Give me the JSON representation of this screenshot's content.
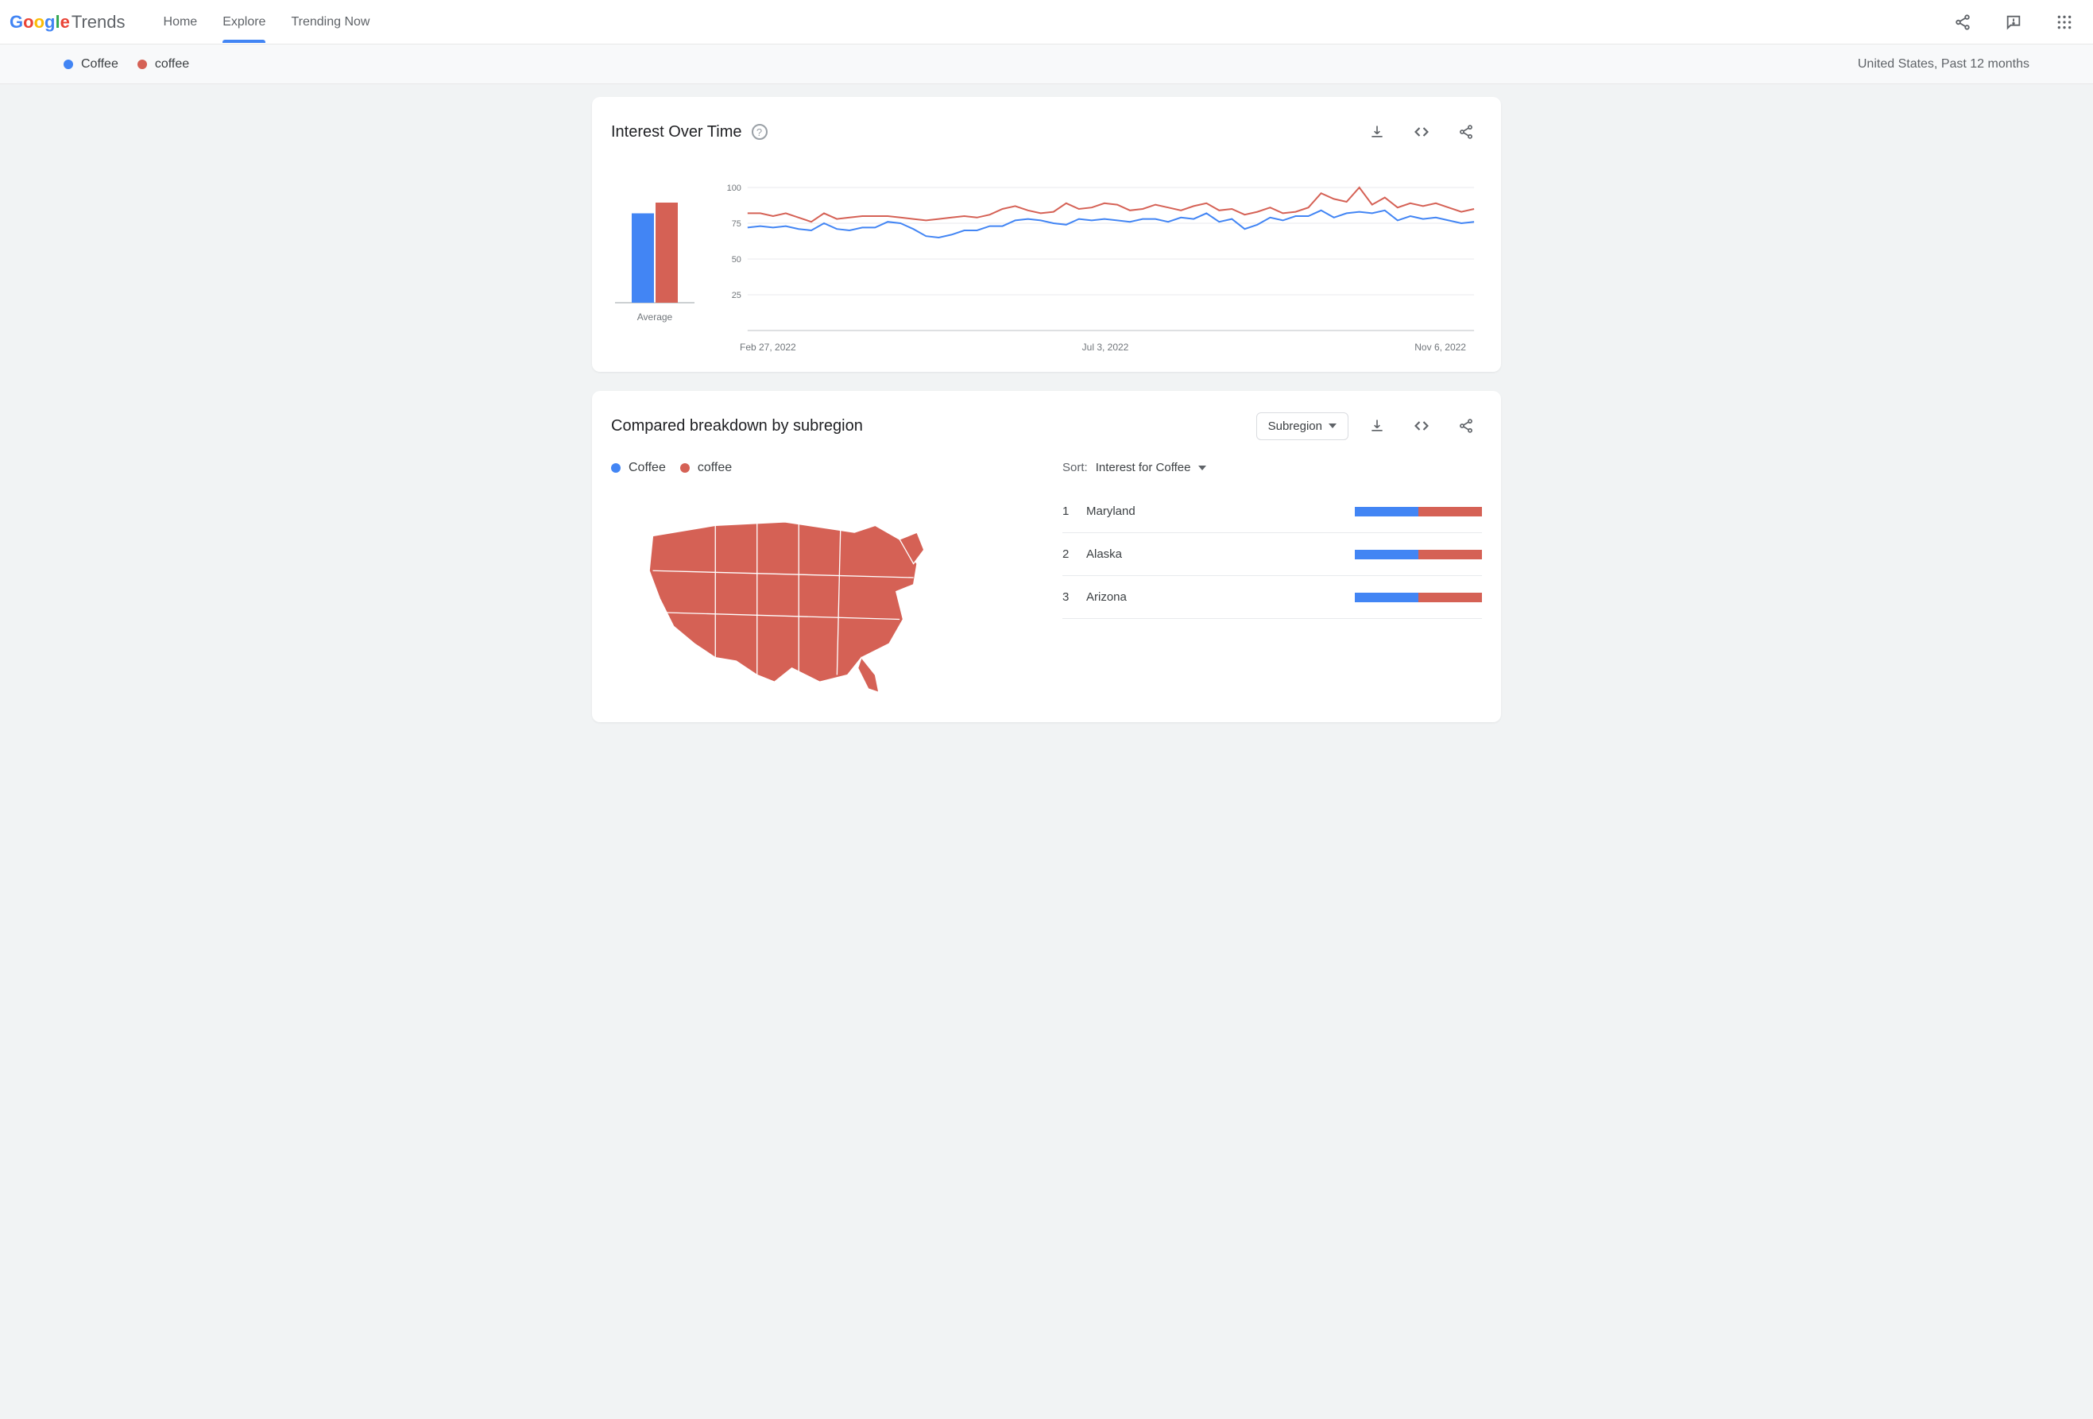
{
  "colors": {
    "series1": "#4285f4",
    "series2": "#d56155",
    "grid": "#e8eaed",
    "axis_text": "#70757a",
    "map_fill": "#d56155",
    "map_stroke": "#ffffff"
  },
  "nav": {
    "logo_trends": "Trends",
    "links": [
      "Home",
      "Explore",
      "Trending Now"
    ],
    "active_index": 1
  },
  "filterbar": {
    "terms": [
      "Coffee",
      "coffee"
    ],
    "scope": "United States, Past 12 months"
  },
  "interest_card": {
    "title": "Interest Over Time",
    "average_label": "Average",
    "averages": [
      75,
      84
    ],
    "y_ticks": [
      25,
      50,
      75,
      100
    ],
    "ylim": [
      0,
      100
    ],
    "x_labels": [
      "Feb 27, 2022",
      "Jul 3, 2022",
      "Nov 6, 2022"
    ],
    "series1": [
      72,
      73,
      72,
      73,
      71,
      70,
      75,
      71,
      70,
      72,
      72,
      76,
      75,
      71,
      66,
      65,
      67,
      70,
      70,
      73,
      73,
      77,
      78,
      77,
      75,
      74,
      78,
      77,
      78,
      77,
      76,
      78,
      78,
      76,
      79,
      78,
      82,
      76,
      78,
      71,
      74,
      79,
      77,
      80,
      80,
      84,
      79,
      82,
      83,
      82,
      84,
      77,
      80,
      78,
      79,
      77,
      75,
      76
    ],
    "series2": [
      82,
      82,
      80,
      82,
      79,
      76,
      82,
      78,
      79,
      80,
      80,
      80,
      79,
      78,
      77,
      78,
      79,
      80,
      79,
      81,
      85,
      87,
      84,
      82,
      83,
      89,
      85,
      86,
      89,
      88,
      84,
      85,
      88,
      86,
      84,
      87,
      89,
      84,
      85,
      81,
      83,
      86,
      82,
      83,
      86,
      96,
      92,
      90,
      100,
      88,
      93,
      86,
      89,
      87,
      89,
      86,
      83,
      85
    ]
  },
  "subregion_card": {
    "title": "Compared breakdown by subregion",
    "select_label": "Subregion",
    "legend": [
      "Coffee",
      "coffee"
    ],
    "sort_label": "Sort:",
    "sort_value": "Interest for Coffee",
    "rows": [
      {
        "rank": "1",
        "name": "Maryland",
        "split": [
          50,
          50
        ]
      },
      {
        "rank": "2",
        "name": "Alaska",
        "split": [
          50,
          50
        ]
      },
      {
        "rank": "3",
        "name": "Arizona",
        "split": [
          50,
          50
        ]
      }
    ]
  }
}
